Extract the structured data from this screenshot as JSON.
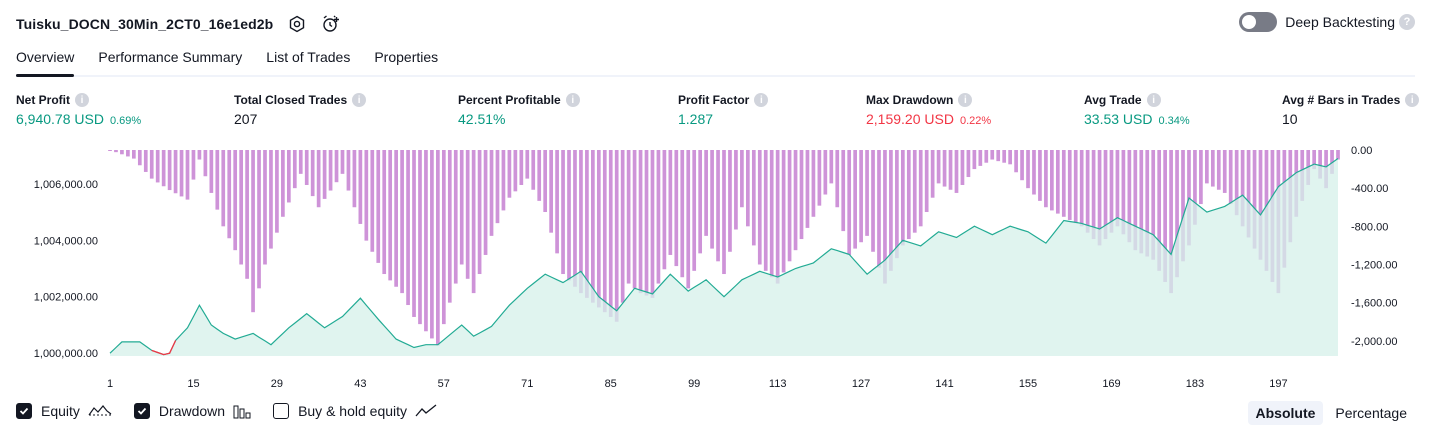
{
  "strategy_title": "Tuisku_DOCN_30Min_2CT0_16e1ed2b",
  "deep_backtesting": {
    "label": "Deep Backtesting",
    "enabled": false
  },
  "tabs": [
    "Overview",
    "Performance Summary",
    "List of Trades",
    "Properties"
  ],
  "active_tab": "Overview",
  "metrics": {
    "net_profit": {
      "label": "Net Profit",
      "value": "6,940.78 USD",
      "pct": "0.69%",
      "color": "#089981"
    },
    "total_closed_trades": {
      "label": "Total Closed Trades",
      "value": "207",
      "color": "#131722"
    },
    "percent_profitable": {
      "label": "Percent Profitable",
      "value": "42.51%",
      "color": "#089981"
    },
    "profit_factor": {
      "label": "Profit Factor",
      "value": "1.287",
      "color": "#089981"
    },
    "max_drawdown": {
      "label": "Max Drawdown",
      "value": "2,159.20 USD",
      "pct": "0.22%",
      "color": "#f23645"
    },
    "avg_trade": {
      "label": "Avg Trade",
      "value": "33.53 USD",
      "pct": "0.34%",
      "color": "#089981"
    },
    "avg_bars": {
      "label": "Avg # Bars in Trades",
      "value": "10",
      "color": "#131722"
    }
  },
  "legend": {
    "equity": {
      "label": "Equity",
      "checked": true,
      "icon": "equity-line-icon"
    },
    "drawdown": {
      "label": "Drawdown",
      "checked": true,
      "icon": "drawdown-bars-icon"
    },
    "buy_hold": {
      "label": "Buy & hold equity",
      "checked": false,
      "icon": "buy-hold-line-icon"
    }
  },
  "view_modes": [
    "Absolute",
    "Percentage"
  ],
  "active_mode": "Absolute",
  "chart_data": {
    "type": "line",
    "x_ticks": [
      1,
      15,
      29,
      43,
      57,
      71,
      85,
      99,
      113,
      127,
      141,
      155,
      169,
      183,
      197
    ],
    "x_range": [
      1,
      207
    ],
    "left_axis": {
      "ticks": [
        "1,006,000.00",
        "1,004,000.00",
        "1,002,000.00",
        "1,000,000.00"
      ],
      "range": [
        999900,
        1007200
      ]
    },
    "right_axis": {
      "ticks": [
        "0.00",
        "-400.00",
        "-800.00",
        "-1,200.00",
        "-1,600.00",
        "-2,000.00"
      ],
      "range": [
        -2159.2,
        0
      ]
    },
    "colors": {
      "equity_line": "#22ab94",
      "equity_fill": "#d5f0e9",
      "equity_loss": "#f23645",
      "drawdown": "#ce93d8",
      "axis_text": "#131722"
    },
    "series": [
      {
        "name": "Equity",
        "keyframes_x": [
          1,
          3,
          6,
          8,
          10,
          11,
          12,
          14,
          16,
          18,
          20,
          22,
          25,
          28,
          31,
          34,
          37,
          40,
          43,
          46,
          49,
          52,
          54,
          56,
          58,
          60,
          62,
          65,
          68,
          71,
          74,
          77,
          80,
          83,
          86,
          89,
          92,
          95,
          98,
          101,
          104,
          107,
          110,
          113,
          116,
          119,
          122,
          125,
          128,
          131,
          134,
          137,
          140,
          143,
          146,
          149,
          152,
          155,
          158,
          161,
          164,
          167,
          170,
          173,
          176,
          179,
          182,
          185,
          188,
          191,
          194,
          197,
          200,
          203,
          205,
          207
        ],
        "keyframes_y": [
          1000000,
          1000400,
          1000400,
          1000100,
          999950,
          1000000,
          1000450,
          1000900,
          1001700,
          1001000,
          1000700,
          1000500,
          1000700,
          1000300,
          1000900,
          1001400,
          1000900,
          1001300,
          1001950,
          1001200,
          1000500,
          1000200,
          1000300,
          1000300,
          1000650,
          1001000,
          1000600,
          1000950,
          1001700,
          1002300,
          1002800,
          1002500,
          1002900,
          1002000,
          1001500,
          1002300,
          1002100,
          1002800,
          1002200,
          1002600,
          1002000,
          1002600,
          1002900,
          1002700,
          1003000,
          1003200,
          1003700,
          1003500,
          1002800,
          1003300,
          1004000,
          1003800,
          1004300,
          1004100,
          1004500,
          1004200,
          1004500,
          1004300,
          1003900,
          1004700,
          1004600,
          1004400,
          1004800,
          1004500,
          1004200,
          1003500,
          1005500,
          1005000,
          1005200,
          1005600,
          1004900,
          1005900,
          1006400,
          1006700,
          1006600,
          1006900
        ]
      },
      {
        "name": "Drawdown",
        "keyframes_x": [
          1,
          5,
          8,
          11,
          14,
          16,
          18,
          20,
          22,
          24,
          25,
          27,
          30,
          33,
          36,
          40,
          44,
          47,
          50,
          52,
          54,
          56,
          58,
          60,
          62,
          65,
          68,
          71,
          74,
          77,
          80,
          83,
          86,
          88,
          90,
          92,
          95,
          98,
          101,
          104,
          107,
          110,
          113,
          116,
          119,
          122,
          125,
          128,
          131,
          134,
          137,
          140,
          143,
          146,
          149,
          152,
          155,
          158,
          161,
          164,
          167,
          170,
          173,
          176,
          179,
          182,
          185,
          188,
          191,
          194,
          197,
          200,
          203,
          205,
          207
        ],
        "keyframes_y": [
          0,
          -90,
          -300,
          -420,
          -520,
          -100,
          -450,
          -800,
          -1050,
          -1350,
          -1700,
          -1200,
          -700,
          -250,
          -600,
          -250,
          -950,
          -1300,
          -1500,
          -1750,
          -1900,
          -2050,
          -1600,
          -1200,
          -1500,
          -900,
          -500,
          -300,
          -650,
          -1300,
          -1500,
          -1650,
          -1800,
          -1400,
          -1500,
          -1550,
          -1100,
          -1450,
          -900,
          -1300,
          -600,
          -1200,
          -1400,
          -1050,
          -700,
          -350,
          -1100,
          -900,
          -1400,
          -1000,
          -800,
          -350,
          -450,
          -200,
          -100,
          -150,
          -400,
          -600,
          -700,
          -800,
          -1000,
          -800,
          -1050,
          -1150,
          -1500,
          -1000,
          -350,
          -450,
          -800,
          -1150,
          -1500,
          -700,
          -200,
          -400,
          -100
        ]
      }
    ]
  }
}
